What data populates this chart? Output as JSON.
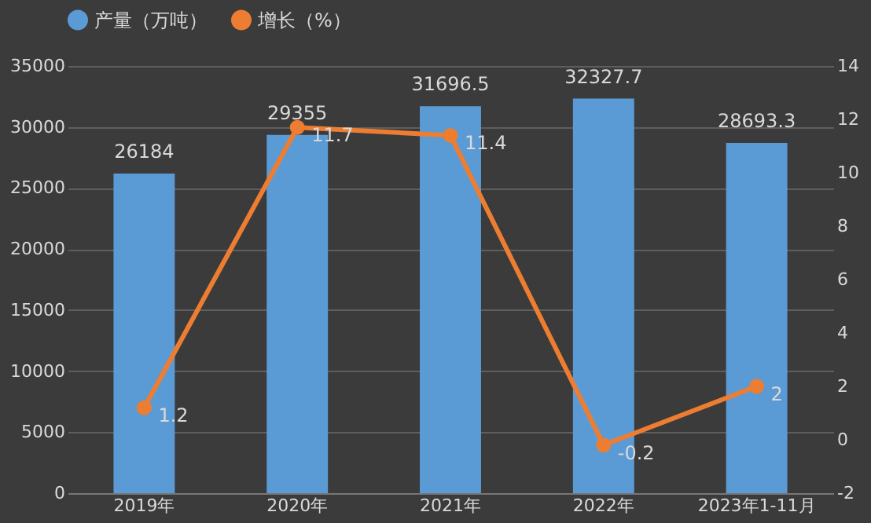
{
  "chart_data": {
    "type": "bar",
    "categories": [
      "2019年",
      "2020年",
      "2021年",
      "2022年",
      "2023年1-11月"
    ],
    "series": [
      {
        "name": "产量（万吨）",
        "color": "#5b9bd5",
        "values": [
          26184,
          29355,
          31696.5,
          32327.7,
          28693.3
        ]
      },
      {
        "name": "增长（%）",
        "type": "line",
        "axis": "y2",
        "color": "#ed7d31",
        "values": [
          1.2,
          11.7,
          11.4,
          -0.2,
          2
        ]
      }
    ],
    "ylim": [
      0,
      35000
    ],
    "yticks": [
      0,
      5000,
      10000,
      15000,
      20000,
      25000,
      30000,
      35000
    ],
    "y2lim": [
      -2,
      14
    ],
    "y2ticks": [
      -2,
      0,
      2,
      4,
      6,
      8,
      10,
      12,
      14
    ],
    "grid": "y",
    "legend": "top",
    "data_labels": true,
    "marker": "circle"
  }
}
